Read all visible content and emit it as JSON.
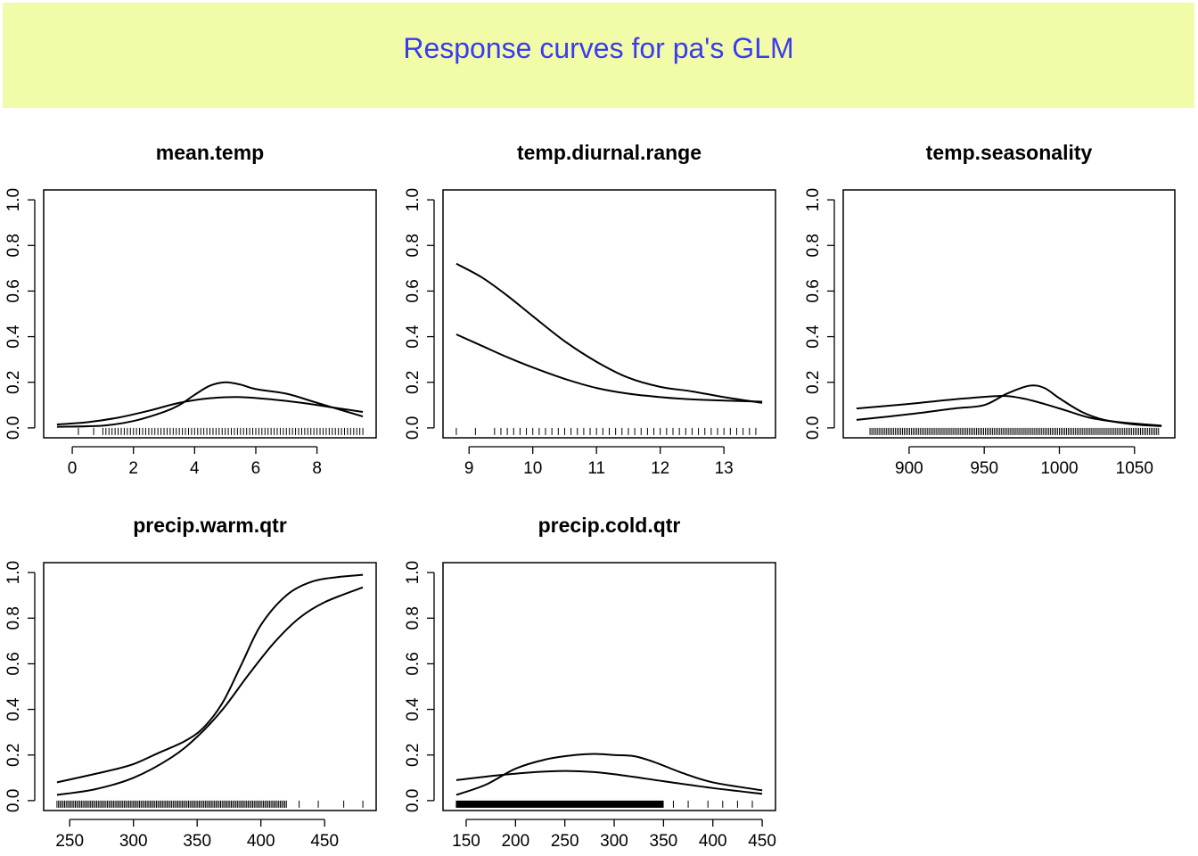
{
  "banner": {
    "title": "Response curves for pa's GLM",
    "background_color": "#f2fca8",
    "title_color": "#3b3bef"
  },
  "chart_data": [
    {
      "type": "line",
      "title": "mean.temp",
      "xlabel": "",
      "ylabel": "",
      "xlim": [
        -0.5,
        9.5
      ],
      "ylim": [
        0,
        1
      ],
      "x_ticks": [
        "0",
        "2",
        "4",
        "6",
        "8"
      ],
      "y_ticks": [
        "0.0",
        "0.2",
        "0.4",
        "0.6",
        "0.8",
        "1.0"
      ],
      "series": [
        {
          "x": [
            -0.5,
            1,
            2,
            3,
            3.5,
            4,
            4.5,
            5,
            5.5,
            6,
            7,
            8,
            9.5
          ],
          "y": [
            0.005,
            0.01,
            0.03,
            0.07,
            0.1,
            0.145,
            0.185,
            0.2,
            0.19,
            0.17,
            0.15,
            0.11,
            0.05
          ]
        },
        {
          "x": [
            -0.5,
            0.5,
            1.5,
            2.5,
            3.5,
            4.5,
            5.5,
            6.5,
            7.5,
            8.5,
            9.5
          ],
          "y": [
            0.015,
            0.025,
            0.045,
            0.075,
            0.11,
            0.13,
            0.135,
            0.125,
            0.11,
            0.09,
            0.07
          ]
        }
      ],
      "rug": {
        "from": 1.0,
        "to": 9.5,
        "step": 0.1,
        "extra": [
          0.2,
          0.7
        ]
      }
    },
    {
      "type": "line",
      "title": "temp.diurnal.range",
      "xlabel": "",
      "ylabel": "",
      "xlim": [
        8.8,
        13.6
      ],
      "ylim": [
        0,
        1
      ],
      "x_ticks": [
        "9",
        "10",
        "11",
        "12",
        "13"
      ],
      "y_ticks": [
        "0.0",
        "0.2",
        "0.4",
        "0.6",
        "0.8",
        "1.0"
      ],
      "series": [
        {
          "x": [
            8.8,
            9.2,
            9.6,
            10,
            10.5,
            11,
            11.5,
            12,
            12.5,
            13,
            13.6
          ],
          "y": [
            0.72,
            0.66,
            0.58,
            0.49,
            0.38,
            0.29,
            0.22,
            0.18,
            0.16,
            0.135,
            0.11
          ]
        },
        {
          "x": [
            8.8,
            9.2,
            9.6,
            10,
            10.5,
            11,
            11.5,
            12,
            12.5,
            13,
            13.6
          ],
          "y": [
            0.41,
            0.36,
            0.31,
            0.265,
            0.215,
            0.175,
            0.15,
            0.135,
            0.125,
            0.12,
            0.115
          ]
        }
      ],
      "rug": {
        "from": 9.4,
        "to": 13.55,
        "step": 0.1,
        "extra": [
          8.8,
          9.1
        ]
      }
    },
    {
      "type": "line",
      "title": "temp.seasonality",
      "xlabel": "",
      "ylabel": "",
      "xlim": [
        865,
        1068
      ],
      "ylim": [
        0,
        1
      ],
      "x_ticks": [
        "900",
        "950",
        "1000",
        "1050"
      ],
      "y_ticks": [
        "0.0",
        "0.2",
        "0.4",
        "0.6",
        "0.8",
        "1.0"
      ],
      "series": [
        {
          "x": [
            865,
            900,
            930,
            950,
            965,
            980,
            990,
            1000,
            1015,
            1030,
            1050,
            1068
          ],
          "y": [
            0.035,
            0.06,
            0.085,
            0.1,
            0.15,
            0.185,
            0.175,
            0.13,
            0.07,
            0.035,
            0.015,
            0.008
          ]
        },
        {
          "x": [
            865,
            900,
            930,
            960,
            975,
            990,
            1005,
            1020,
            1040,
            1068
          ],
          "y": [
            0.085,
            0.105,
            0.125,
            0.14,
            0.13,
            0.105,
            0.075,
            0.045,
            0.025,
            0.01
          ]
        }
      ],
      "rug": {
        "from": 874,
        "to": 1066,
        "step": 1.2,
        "extra": []
      }
    },
    {
      "type": "line",
      "title": "precip.warm.qtr",
      "xlabel": "",
      "ylabel": "",
      "xlim": [
        240,
        480
      ],
      "ylim": [
        0,
        1
      ],
      "x_ticks": [
        "250",
        "300",
        "350",
        "400",
        "450"
      ],
      "y_ticks": [
        "0.0",
        "0.2",
        "0.4",
        "0.6",
        "0.8",
        "1.0"
      ],
      "series": [
        {
          "x": [
            240,
            280,
            300,
            320,
            340,
            355,
            370,
            385,
            400,
            420,
            440,
            460,
            480
          ],
          "y": [
            0.08,
            0.13,
            0.16,
            0.21,
            0.26,
            0.32,
            0.43,
            0.6,
            0.77,
            0.9,
            0.96,
            0.98,
            0.99
          ]
        },
        {
          "x": [
            240,
            270,
            300,
            330,
            350,
            370,
            390,
            410,
            430,
            450,
            480
          ],
          "y": [
            0.025,
            0.05,
            0.1,
            0.19,
            0.28,
            0.4,
            0.55,
            0.69,
            0.8,
            0.87,
            0.935
          ]
        }
      ],
      "rug": {
        "from": 240,
        "to": 420,
        "step": 1.2,
        "extra": [
          430,
          445,
          465,
          480
        ]
      }
    },
    {
      "type": "line",
      "title": "precip.cold.qtr",
      "xlabel": "",
      "ylabel": "",
      "xlim": [
        140,
        450
      ],
      "ylim": [
        0,
        1
      ],
      "x_ticks": [
        "150",
        "200",
        "250",
        "300",
        "350",
        "400",
        "450"
      ],
      "y_ticks": [
        "0.0",
        "0.2",
        "0.4",
        "0.6",
        "0.8",
        "1.0"
      ],
      "series": [
        {
          "x": [
            140,
            170,
            200,
            230,
            260,
            280,
            300,
            320,
            340,
            370,
            400,
            450
          ],
          "y": [
            0.025,
            0.07,
            0.14,
            0.18,
            0.2,
            0.205,
            0.2,
            0.195,
            0.17,
            0.12,
            0.08,
            0.045
          ]
        },
        {
          "x": [
            140,
            180,
            220,
            250,
            280,
            310,
            350,
            400,
            450
          ],
          "y": [
            0.09,
            0.11,
            0.125,
            0.13,
            0.125,
            0.11,
            0.085,
            0.055,
            0.03
          ]
        }
      ],
      "rug": {
        "from": 140,
        "to": 350,
        "step": 0.9,
        "extra": [
          360,
          375,
          395,
          410,
          425,
          440
        ]
      }
    }
  ]
}
